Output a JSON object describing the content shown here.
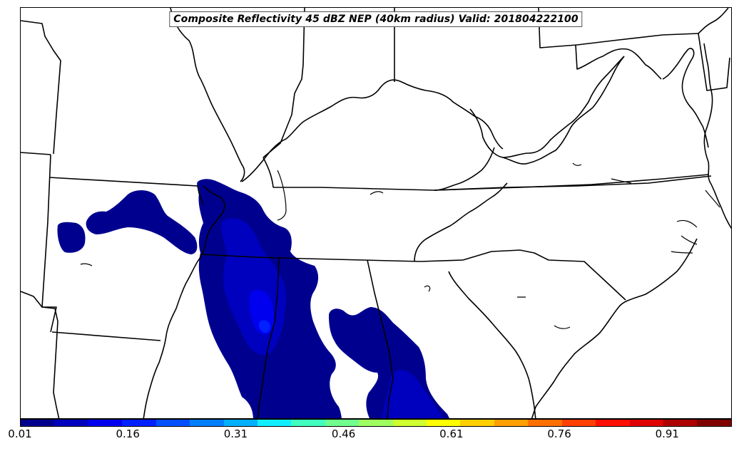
{
  "title": "Composite Reflectivity 45 dBZ NEP (40km radius) Valid: 201804222100",
  "colorbar": {
    "colors": [
      "#00008f",
      "#0000bf",
      "#0000ef",
      "#0020ff",
      "#0050ff",
      "#0080ff",
      "#00b0ff",
      "#10efff",
      "#40ffbf",
      "#70ff8f",
      "#9fff60",
      "#cfff30",
      "#ffff00",
      "#ffcf00",
      "#ff9f00",
      "#ff7000",
      "#ff4000",
      "#ff1000",
      "#df0000",
      "#af0000",
      "#800000"
    ],
    "range": [
      0.01,
      1.0
    ],
    "tick_labels": [
      "0.01",
      "0.16",
      "0.31",
      "0.46",
      "0.61",
      "0.76",
      "0.91"
    ],
    "tick_values": [
      0.01,
      0.16,
      0.31,
      0.46,
      0.61,
      0.76,
      0.91
    ]
  }
}
